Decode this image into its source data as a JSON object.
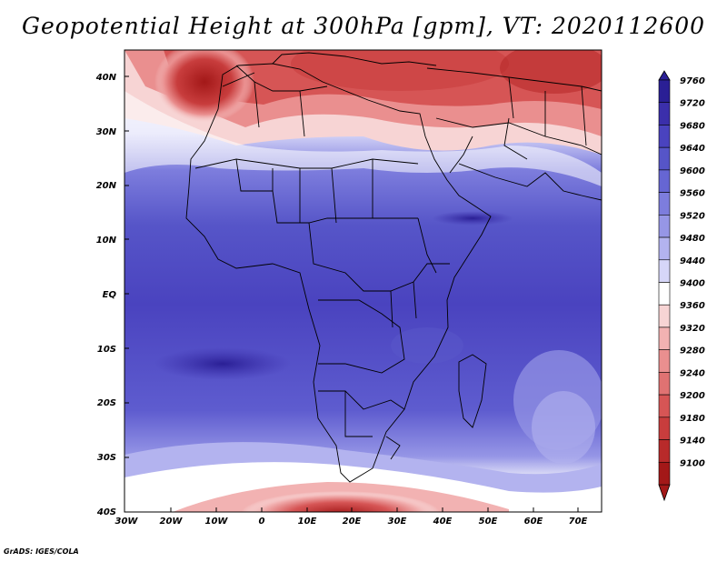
{
  "title": "Geopotential Height at 300hPa [gpm], VT: 2020112600",
  "credit": "GrADS: IGES/COLA",
  "lon_labels": [
    "30W",
    "20W",
    "10W",
    "0",
    "10E",
    "20E",
    "30E",
    "40E",
    "50E",
    "60E",
    "70E"
  ],
  "lat_labels": [
    "40N",
    "30N",
    "20N",
    "10N",
    "EQ",
    "10S",
    "20S",
    "30S",
    "40S"
  ],
  "colorbar": {
    "labels": [
      "9760",
      "9720",
      "9680",
      "9640",
      "9600",
      "9560",
      "9520",
      "9480",
      "9440",
      "9400",
      "9360",
      "9320",
      "9280",
      "9240",
      "9200",
      "9180",
      "9140",
      "9100"
    ],
    "colors": [
      "#2a1f95",
      "#3b2fab",
      "#4a43bf",
      "#5655c8",
      "#6666d3",
      "#7d7ddd",
      "#9696e6",
      "#b3b3ef",
      "#d6d6f8",
      "#ffffff",
      "#f7d4d4",
      "#f2b2b2",
      "#ea8f8f",
      "#e07272",
      "#d65555",
      "#c83d3d",
      "#b82a2a",
      "#a31818"
    ]
  }
}
